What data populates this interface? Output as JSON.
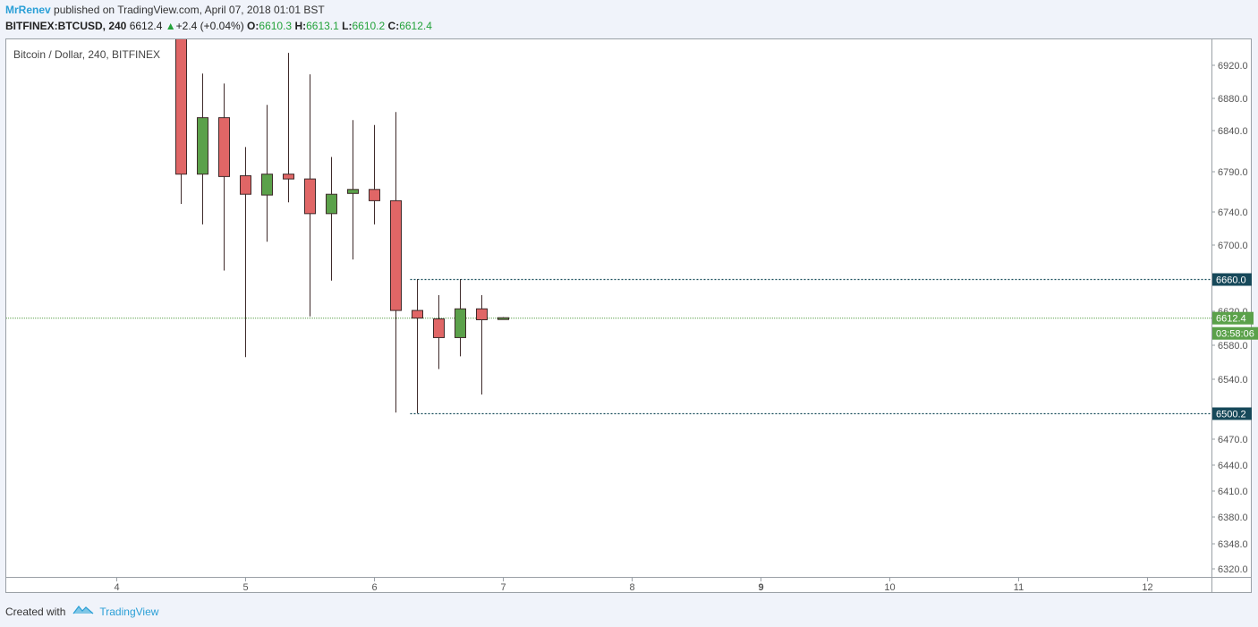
{
  "header": {
    "author": "MrRenev",
    "published_text": " published on TradingView.com, April 07, 2018 01:01 BST",
    "symbol": "BITFINEX:BTCUSD, 240",
    "last_price": "6612.4",
    "change_arrow": "▲",
    "change": "+2.4 (+0.04%)",
    "open_label": "O:",
    "open_value": "6610.3",
    "high_label": "H:",
    "high_value": "6613.1",
    "low_label": "L:",
    "low_value": "6610.2",
    "close_label": "C:",
    "close_value": "6612.4"
  },
  "footer": {
    "created_with": "Created with",
    "brand": "TradingView"
  },
  "chart_data": {
    "type": "candlestick",
    "title": "Bitcoin / Dollar, 240, BITFINEX",
    "x_ticks": [
      {
        "label": "4",
        "t": 0,
        "bold": false
      },
      {
        "label": "5",
        "t": 6,
        "bold": false
      },
      {
        "label": "6",
        "t": 12,
        "bold": false
      },
      {
        "label": "7",
        "t": 18,
        "bold": false
      },
      {
        "label": "8",
        "t": 24,
        "bold": false
      },
      {
        "label": "9",
        "t": 30,
        "bold": true
      },
      {
        "label": "10",
        "t": 36,
        "bold": false
      },
      {
        "label": "11",
        "t": 42,
        "bold": false
      },
      {
        "label": "12",
        "t": 48,
        "bold": false
      }
    ],
    "y_ticks": [
      {
        "label": "6920.0",
        "value": 6920
      },
      {
        "label": "6880.0",
        "value": 6880
      },
      {
        "label": "6840.0",
        "value": 6840
      },
      {
        "label": "6790.0",
        "value": 6790
      },
      {
        "label": "6740.0",
        "value": 6740
      },
      {
        "label": "6700.0",
        "value": 6700
      },
      {
        "label": "6620.0",
        "value": 6620
      },
      {
        "label": "6580.0",
        "value": 6580
      },
      {
        "label": "6540.0",
        "value": 6540
      },
      {
        "label": "6470.0",
        "value": 6470
      },
      {
        "label": "6440.0",
        "value": 6440
      },
      {
        "label": "6410.0",
        "value": 6410
      },
      {
        "label": "6380.0",
        "value": 6380
      },
      {
        "label": "6348.0",
        "value": 6348
      },
      {
        "label": "6320.0",
        "value": 6320
      }
    ],
    "y_anchors": [
      {
        "value": 6920,
        "pos": 73
      },
      {
        "value": 6880,
        "pos": 110
      },
      {
        "value": 6840,
        "pos": 146
      },
      {
        "value": 6790,
        "pos": 192
      },
      {
        "value": 6740,
        "pos": 237
      },
      {
        "value": 6700,
        "pos": 274
      },
      {
        "value": 6660,
        "pos": 312
      },
      {
        "value": 6620,
        "pos": 348
      },
      {
        "value": 6580,
        "pos": 386
      },
      {
        "value": 6540,
        "pos": 424
      },
      {
        "value": 6500.2,
        "pos": 462
      },
      {
        "value": 6470,
        "pos": 491
      },
      {
        "value": 6440,
        "pos": 520
      },
      {
        "value": 6410,
        "pos": 549
      },
      {
        "value": 6380,
        "pos": 578
      },
      {
        "value": 6348,
        "pos": 608
      },
      {
        "value": 6320,
        "pos": 636
      }
    ],
    "candles": [
      {
        "t": 3,
        "o": 6980,
        "h": 6990,
        "l": 6750,
        "c": 6787
      },
      {
        "t": 4,
        "o": 6787,
        "h": 6910,
        "l": 6725,
        "c": 6856
      },
      {
        "t": 5,
        "o": 6856,
        "h": 6898,
        "l": 6670,
        "c": 6784
      },
      {
        "t": 6,
        "o": 6785,
        "h": 6820,
        "l": 6566,
        "c": 6762
      },
      {
        "t": 7,
        "o": 6761,
        "h": 6872,
        "l": 6704,
        "c": 6787
      },
      {
        "t": 8,
        "o": 6787,
        "h": 6935,
        "l": 6752,
        "c": 6781
      },
      {
        "t": 9,
        "o": 6781,
        "h": 6909,
        "l": 6614,
        "c": 6738
      },
      {
        "t": 10,
        "o": 6738,
        "h": 6808,
        "l": 6658,
        "c": 6762
      },
      {
        "t": 11,
        "o": 6763,
        "h": 6853,
        "l": 6683,
        "c": 6768
      },
      {
        "t": 12,
        "o": 6768,
        "h": 6847,
        "l": 6725,
        "c": 6754
      },
      {
        "t": 13,
        "o": 6754,
        "h": 6863,
        "l": 6501,
        "c": 6621
      },
      {
        "t": 14,
        "o": 6621,
        "h": 6660,
        "l": 6500.2,
        "c": 6612
      },
      {
        "t": 15,
        "o": 6611,
        "h": 6640,
        "l": 6552,
        "c": 6589
      },
      {
        "t": 16,
        "o": 6589,
        "h": 6660,
        "l": 6567,
        "c": 6623
      },
      {
        "t": 17,
        "o": 6623,
        "h": 6640,
        "l": 6522,
        "c": 6610
      },
      {
        "t": 18,
        "o": 6610.3,
        "h": 6613.1,
        "l": 6610.2,
        "c": 6612.4
      }
    ],
    "levels": [
      {
        "value": 6660.0,
        "label": "6660.0",
        "start_t": 14
      },
      {
        "value": 6500.2,
        "label": "6500.2",
        "start_t": 14
      }
    ],
    "last": {
      "value": 6612.4,
      "label": "6612.4",
      "countdown": "03:58:06"
    },
    "colors": {
      "up": "#5ba14a",
      "down": "#e06666",
      "outline": "#3e2a2a",
      "level_line": "#1b4f5c",
      "level_tag": "#17495a",
      "last_line": "#5ba14a",
      "last_tag": "#5ba14a"
    }
  }
}
